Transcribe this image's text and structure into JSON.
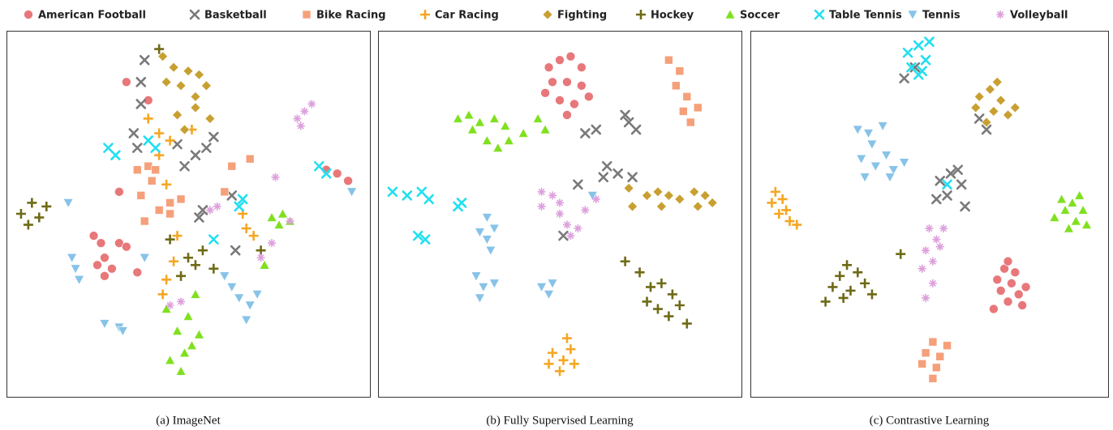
{
  "chart_data": [
    {
      "type": "scatter",
      "title": "(a) ImageNet",
      "xlim": [
        0,
        100
      ],
      "ylim": [
        0,
        100
      ],
      "series": [
        {
          "name": "American Football",
          "color": "#e8777a",
          "marker": "circle",
          "x": [
            24,
            26,
            27,
            25,
            27,
            29,
            31,
            33,
            36,
            31,
            33,
            39,
            91,
            94,
            88
          ],
          "y": [
            44,
            42,
            38,
            36,
            33,
            35,
            42,
            41,
            34,
            56,
            86,
            81,
            61,
            59,
            62
          ]
        },
        {
          "name": "Basketball",
          "color": "#7a7a7a",
          "marker": "x",
          "x": [
            37,
            38,
            37,
            35,
            36,
            49,
            52,
            55,
            57,
            53,
            54,
            47,
            62,
            63
          ],
          "y": [
            86,
            92,
            80,
            72,
            68,
            63,
            66,
            68,
            71,
            49,
            51,
            69,
            55,
            40
          ]
        },
        {
          "name": "Bike Racing",
          "color": "#f5a07a",
          "marker": "square",
          "x": [
            36,
            39,
            41,
            40,
            37,
            42,
            45,
            45,
            67,
            62,
            38,
            48,
            60
          ],
          "y": [
            62,
            63,
            62,
            59,
            55,
            51,
            53,
            50,
            65,
            63,
            48,
            54,
            56
          ]
        },
        {
          "name": "Car Racing",
          "color": "#f5a623",
          "marker": "plus",
          "x": [
            39,
            42,
            45,
            42,
            44,
            47,
            46,
            44,
            43,
            66,
            68,
            65,
            51
          ],
          "y": [
            76,
            72,
            70,
            66,
            58,
            44,
            37,
            32,
            28,
            46,
            44,
            50,
            73
          ]
        },
        {
          "name": "Fighting",
          "color": "#c8a032",
          "marker": "diamond",
          "x": [
            43,
            46,
            44,
            48,
            52,
            55,
            53,
            50,
            47,
            49,
            52,
            56
          ],
          "y": [
            93,
            90,
            86,
            85,
            82,
            85,
            88,
            89,
            77,
            73,
            79,
            76
          ]
        },
        {
          "name": "Hockey",
          "color": "#6e6a16",
          "marker": "plus",
          "x": [
            4,
            7,
            9,
            11,
            6,
            50,
            52,
            48,
            54,
            57,
            70,
            42,
            45
          ],
          "y": [
            50,
            53,
            49,
            52,
            47,
            38,
            36,
            33,
            40,
            35,
            40,
            95,
            43
          ]
        },
        {
          "name": "Soccer",
          "color": "#80e020",
          "marker": "triangle",
          "x": [
            73,
            75,
            78,
            76,
            71,
            52,
            50,
            53,
            47,
            49,
            45,
            48,
            51,
            44
          ],
          "y": [
            49,
            47,
            48,
            50,
            36,
            28,
            22,
            17,
            18,
            12,
            10,
            7,
            14,
            24
          ]
        },
        {
          "name": "Table Tennis",
          "color": "#22dff0",
          "marker": "x",
          "x": [
            28,
            30,
            41,
            39,
            64,
            65,
            57,
            86,
            88
          ],
          "y": [
            68,
            66,
            68,
            70,
            52,
            54,
            43,
            63,
            61
          ]
        },
        {
          "name": "Tennis",
          "color": "#87c3e8",
          "marker": "triangle-down",
          "x": [
            18,
            19,
            20,
            27,
            31,
            32,
            60,
            62,
            64,
            67,
            66,
            69,
            95,
            17,
            38
          ],
          "y": [
            38,
            35,
            32,
            20,
            19,
            18,
            33,
            30,
            27,
            25,
            21,
            28,
            56,
            53,
            38
          ]
        },
        {
          "name": "Volleyball",
          "color": "#dda0dd",
          "marker": "star",
          "x": [
            80,
            82,
            81,
            84,
            78,
            73,
            70,
            45,
            48,
            56,
            58,
            74
          ],
          "y": [
            76,
            78,
            74,
            80,
            48,
            42,
            38,
            25,
            26,
            51,
            52,
            60
          ]
        }
      ]
    },
    {
      "type": "scatter",
      "title": "(b) Fully Supervised Learning",
      "xlim": [
        0,
        100
      ],
      "ylim": [
        0,
        100
      ],
      "series": [
        {
          "name": "American Football",
          "color": "#e8777a",
          "marker": "circle",
          "x": [
            47,
            50,
            53,
            56,
            48,
            52,
            56,
            50,
            54,
            58,
            52,
            46
          ],
          "y": [
            90,
            92,
            93,
            90,
            86,
            86,
            85,
            81,
            80,
            82,
            77,
            83
          ]
        },
        {
          "name": "Basketball",
          "color": "#7a7a7a",
          "marker": "x",
          "x": [
            57,
            60,
            69,
            71,
            68,
            62,
            63,
            66,
            51,
            55,
            70
          ],
          "y": [
            72,
            73,
            75,
            73,
            77,
            60,
            63,
            61,
            44,
            58,
            60
          ]
        },
        {
          "name": "Bike Racing",
          "color": "#f5a07a",
          "marker": "square",
          "x": [
            80,
            83,
            82,
            85,
            88,
            86,
            84
          ],
          "y": [
            92,
            89,
            85,
            82,
            79,
            75,
            78
          ]
        },
        {
          "name": "Car Racing",
          "color": "#f5a623",
          "marker": "plus",
          "x": [
            51,
            48,
            53,
            50,
            54,
            47,
            52
          ],
          "y": [
            10,
            12,
            13,
            7,
            9,
            9,
            16
          ]
        },
        {
          "name": "Fighting",
          "color": "#c8a032",
          "marker": "diamond",
          "x": [
            74,
            77,
            80,
            83,
            87,
            90,
            92,
            88,
            78,
            69,
            70
          ],
          "y": [
            55,
            56,
            55,
            54,
            56,
            55,
            53,
            52,
            52,
            57,
            52
          ]
        },
        {
          "name": "Hockey",
          "color": "#6e6a16",
          "marker": "plus",
          "x": [
            72,
            75,
            78,
            81,
            74,
            77,
            80,
            83,
            85,
            68
          ],
          "y": [
            34,
            30,
            31,
            28,
            26,
            24,
            22,
            25,
            20,
            37
          ]
        },
        {
          "name": "Soccer",
          "color": "#80e020",
          "marker": "triangle",
          "x": [
            22,
            25,
            28,
            32,
            35,
            30,
            33,
            36,
            40,
            44,
            46,
            26
          ],
          "y": [
            76,
            77,
            75,
            76,
            74,
            70,
            68,
            70,
            72,
            76,
            73,
            73
          ]
        },
        {
          "name": "Table Tennis",
          "color": "#22dff0",
          "marker": "x",
          "x": [
            4,
            8,
            12,
            14,
            22,
            11,
            13,
            23
          ],
          "y": [
            56,
            55,
            56,
            54,
            52,
            44,
            43,
            53
          ]
        },
        {
          "name": "Tennis",
          "color": "#87c3e8",
          "marker": "triangle-down",
          "x": [
            30,
            32,
            30,
            28,
            31,
            27,
            29,
            32,
            28,
            45,
            48,
            47,
            59
          ],
          "y": [
            49,
            46,
            43,
            45,
            40,
            33,
            30,
            31,
            27,
            30,
            31,
            28,
            55
          ]
        },
        {
          "name": "Volleyball",
          "color": "#dda0dd",
          "marker": "star",
          "x": [
            45,
            48,
            45,
            50,
            52,
            55,
            53,
            57,
            60,
            50
          ],
          "y": [
            56,
            55,
            52,
            50,
            47,
            46,
            44,
            51,
            54,
            53
          ]
        }
      ]
    },
    {
      "type": "scatter",
      "title": "(c) Contrastive Learning",
      "xlim": [
        0,
        100
      ],
      "ylim": [
        0,
        100
      ],
      "series": [
        {
          "name": "American Football",
          "color": "#e8777a",
          "marker": "circle",
          "x": [
            69,
            71,
            73,
            75,
            77,
            72,
            70,
            74,
            76,
            68,
            72
          ],
          "y": [
            32,
            35,
            31,
            28,
            30,
            26,
            29,
            34,
            25,
            24,
            37
          ]
        },
        {
          "name": "Basketball",
          "color": "#7a7a7a",
          "marker": "x",
          "x": [
            53,
            56,
            59,
            55,
            52,
            58,
            43,
            46,
            64,
            66,
            60
          ],
          "y": [
            59,
            61,
            58,
            55,
            54,
            62,
            87,
            90,
            76,
            73,
            52
          ]
        },
        {
          "name": "Bike Racing",
          "color": "#f5a07a",
          "marker": "square",
          "x": [
            49,
            51,
            53,
            52,
            48,
            55,
            51
          ],
          "y": [
            12,
            15,
            11,
            8,
            9,
            14,
            5
          ]
        },
        {
          "name": "Car Racing",
          "color": "#f5a623",
          "marker": "plus",
          "x": [
            7,
            9,
            10,
            8,
            11,
            6,
            13
          ],
          "y": [
            56,
            54,
            51,
            50,
            48,
            53,
            47
          ]
        },
        {
          "name": "Fighting",
          "color": "#c8a032",
          "marker": "diamond",
          "x": [
            64,
            67,
            70,
            68,
            66,
            72,
            74,
            69,
            63
          ],
          "y": [
            82,
            84,
            81,
            78,
            75,
            77,
            79,
            86,
            79
          ]
        },
        {
          "name": "Hockey",
          "color": "#6e6a16",
          "marker": "plus",
          "x": [
            25,
            27,
            30,
            32,
            28,
            26,
            34,
            23,
            21,
            42
          ],
          "y": [
            33,
            36,
            34,
            31,
            29,
            27,
            28,
            30,
            26,
            39
          ]
        },
        {
          "name": "Soccer",
          "color": "#80e020",
          "marker": "triangle",
          "x": [
            88,
            90,
            93,
            91,
            89,
            94,
            92,
            87,
            85
          ],
          "y": [
            51,
            53,
            51,
            48,
            46,
            47,
            55,
            54,
            49
          ]
        },
        {
          "name": "Table Tennis",
          "color": "#22dff0",
          "marker": "x",
          "x": [
            44,
            47,
            49,
            45,
            48,
            50,
            55,
            47
          ],
          "y": [
            94,
            96,
            92,
            90,
            89,
            97,
            58,
            88
          ]
        },
        {
          "name": "Tennis",
          "color": "#87c3e8",
          "marker": "triangle-down",
          "x": [
            30,
            33,
            37,
            34,
            31,
            35,
            38,
            40,
            43,
            32,
            39
          ],
          "y": [
            73,
            72,
            74,
            69,
            65,
            63,
            66,
            62,
            64,
            60,
            60
          ]
        },
        {
          "name": "Volleyball",
          "color": "#dda0dd",
          "marker": "star",
          "x": [
            50,
            52,
            49,
            51,
            53,
            48,
            51,
            54,
            49
          ],
          "y": [
            46,
            43,
            40,
            37,
            41,
            35,
            31,
            46,
            27
          ]
        }
      ]
    }
  ]
}
